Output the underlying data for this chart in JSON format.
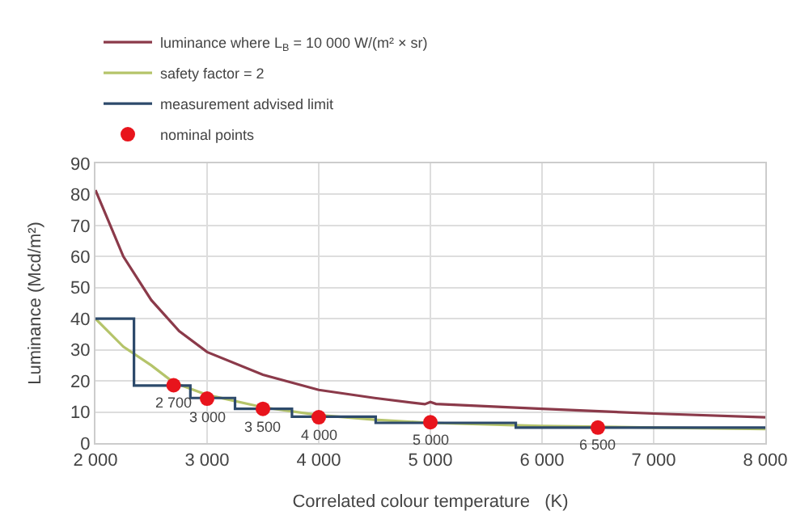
{
  "chart_data": {
    "type": "line",
    "xlabel": "Correlated colour temperature   (K)",
    "ylabel": "Luminance (Mcd/m²)",
    "xlim": [
      2000,
      8000
    ],
    "xticks": [
      {
        "value": 2000,
        "label": "2 000"
      },
      {
        "value": 3000,
        "label": "3 000"
      },
      {
        "value": 4000,
        "label": "4 000"
      },
      {
        "value": 5000,
        "label": "5 000"
      },
      {
        "value": 6000,
        "label": "6 000"
      },
      {
        "value": 7000,
        "label": "7 000"
      },
      {
        "value": 8000,
        "label": "8 000"
      }
    ],
    "ylim": [
      0,
      90
    ],
    "yticks": [
      0,
      10,
      20,
      30,
      40,
      50,
      60,
      70,
      80,
      90
    ],
    "grid": true,
    "legend": "top",
    "series": [
      {
        "name": "luminance where L$_{B}$ = 10 000 W/(m² × sr)",
        "color": "#8b3a4a",
        "x": [
          2000,
          2250,
          2500,
          2750,
          3000,
          3500,
          4000,
          4500,
          4950,
          5000,
          5050,
          6000,
          7000,
          8000
        ],
        "values": [
          81.4,
          60,
          46,
          36,
          29.3,
          22,
          17.1,
          14.5,
          12.5,
          13.2,
          12.6,
          11,
          9.5,
          8.3
        ]
      },
      {
        "name": "safety factor = 2",
        "color": "#b5c46a",
        "x": [
          2000,
          2250,
          2500,
          2700,
          3000,
          3500,
          4000,
          4500,
          5000,
          6000,
          7000,
          8000
        ],
        "values": [
          40,
          31,
          25,
          19.5,
          15.5,
          11.5,
          9,
          7.5,
          6.5,
          5.5,
          5,
          4.5
        ]
      },
      {
        "name": "measurement advised limit",
        "type": "step",
        "color": "#2d4a6b",
        "x": [
          2000,
          2345,
          2850,
          3250,
          3760,
          4510,
          5765,
          8000
        ],
        "values": [
          40,
          18.5,
          14.5,
          11,
          8.5,
          6.5,
          5,
          5
        ]
      },
      {
        "name": "nominal points",
        "type": "scatter",
        "color": "#e8141c",
        "marker": "circle",
        "x": [
          2700,
          3000,
          3500,
          4000,
          5000,
          6500
        ],
        "values": [
          18.6,
          14.3,
          11,
          8.3,
          6.7,
          5
        ]
      }
    ],
    "annotations": [
      {
        "text": "2 700",
        "x": 2700,
        "y": 18.6
      },
      {
        "text": "3 000",
        "x": 3000,
        "y": 14.3
      },
      {
        "text": "3 500",
        "x": 3500,
        "y": 11
      },
      {
        "text": "4 000",
        "x": 4000,
        "y": 8.3
      },
      {
        "text": "5 000",
        "x": 5000,
        "y": 6.7
      },
      {
        "text": "6 500",
        "x": 6500,
        "y": 5
      }
    ]
  }
}
